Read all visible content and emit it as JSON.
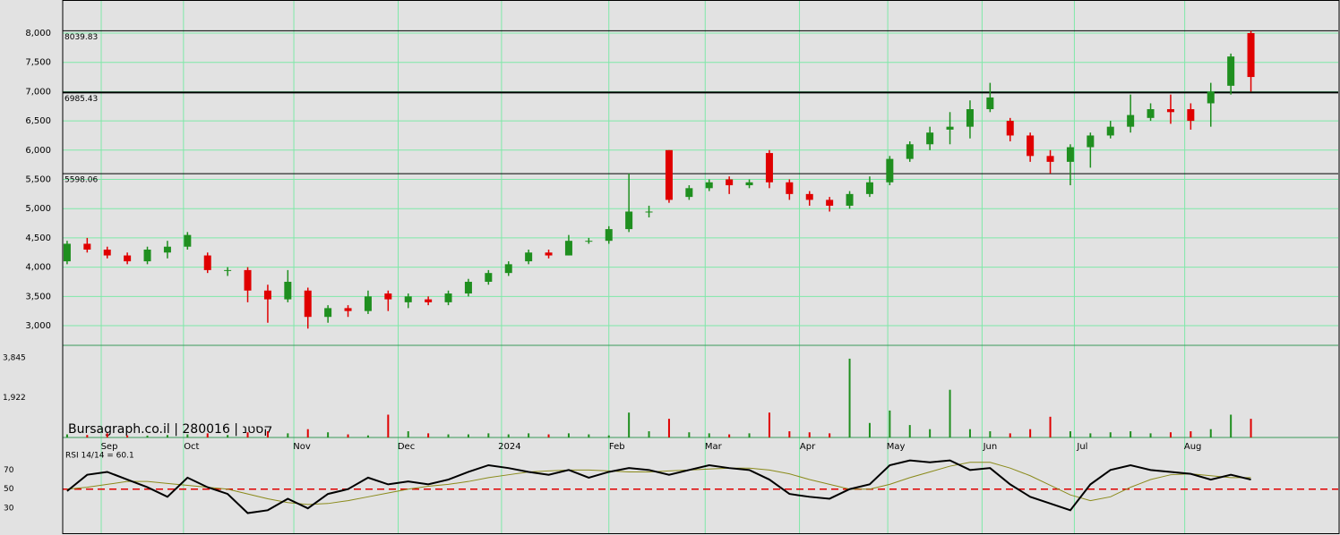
{
  "chart_data": [
    {
      "type": "candlestick",
      "watermark": "Bursagraph.co.il | 280016 | קסטנ",
      "ohlc": [
        [
          4100,
          4450,
          4050,
          4400
        ],
        [
          4400,
          4500,
          4250,
          4300
        ],
        [
          4300,
          4350,
          4150,
          4200
        ],
        [
          4200,
          4250,
          4050,
          4100
        ],
        [
          4100,
          4350,
          4050,
          4300
        ],
        [
          4250,
          4450,
          4150,
          4350
        ],
        [
          4350,
          4600,
          4300,
          4550
        ],
        [
          4200,
          4250,
          3900,
          3950
        ],
        [
          3950,
          4000,
          3850,
          3950
        ],
        [
          3950,
          4000,
          3400,
          3600
        ],
        [
          3600,
          3700,
          3050,
          3450
        ],
        [
          3450,
          3950,
          3400,
          3750
        ],
        [
          3600,
          3650,
          2950,
          3150
        ],
        [
          3150,
          3350,
          3050,
          3300
        ],
        [
          3300,
          3350,
          3150,
          3250
        ],
        [
          3250,
          3600,
          3200,
          3500
        ],
        [
          3550,
          3600,
          3250,
          3450
        ],
        [
          3400,
          3550,
          3300,
          3500
        ],
        [
          3450,
          3500,
          3350,
          3400
        ],
        [
          3400,
          3600,
          3350,
          3550
        ],
        [
          3550,
          3800,
          3500,
          3750
        ],
        [
          3750,
          3950,
          3700,
          3900
        ],
        [
          3900,
          4100,
          3850,
          4050
        ],
        [
          4100,
          4300,
          4050,
          4250
        ],
        [
          4250,
          4300,
          4150,
          4200
        ],
        [
          4200,
          4550,
          4200,
          4450
        ],
        [
          4450,
          4500,
          4400,
          4450
        ],
        [
          4450,
          4700,
          4400,
          4650
        ],
        [
          4650,
          5600,
          4600,
          4950
        ],
        [
          4950,
          5050,
          4850,
          4950
        ],
        [
          6000,
          6000,
          5100,
          5150
        ],
        [
          5200,
          5400,
          5150,
          5350
        ],
        [
          5350,
          5500,
          5300,
          5450
        ],
        [
          5500,
          5550,
          5250,
          5400
        ],
        [
          5400,
          5500,
          5350,
          5450
        ],
        [
          5950,
          6000,
          5350,
          5450
        ],
        [
          5450,
          5500,
          5150,
          5250
        ],
        [
          5250,
          5300,
          5050,
          5150
        ],
        [
          5150,
          5200,
          4950,
          5050
        ],
        [
          5050,
          5300,
          5000,
          5250
        ],
        [
          5250,
          5550,
          5200,
          5450
        ],
        [
          5450,
          5900,
          5400,
          5850
        ],
        [
          5850,
          6150,
          5800,
          6100
        ],
        [
          6100,
          6400,
          6000,
          6300
        ],
        [
          6350,
          6650,
          6100,
          6400
        ],
        [
          6400,
          6850,
          6200,
          6700
        ],
        [
          6700,
          7150,
          6650,
          6900
        ],
        [
          6500,
          6550,
          6150,
          6250
        ],
        [
          6250,
          6300,
          5800,
          5900
        ],
        [
          5900,
          6000,
          5600,
          5800
        ],
        [
          5800,
          6100,
          5400,
          6050
        ],
        [
          6050,
          6300,
          5700,
          6250
        ],
        [
          6250,
          6500,
          6200,
          6400
        ],
        [
          6400,
          6950,
          6300,
          6600
        ],
        [
          6550,
          6800,
          6500,
          6700
        ],
        [
          6700,
          6950,
          6450,
          6650
        ],
        [
          6700,
          6800,
          6350,
          6500
        ],
        [
          6800,
          7150,
          6400,
          7000
        ],
        [
          7100,
          7650,
          6950,
          7600
        ],
        [
          8000,
          8040,
          7000,
          7250
        ]
      ],
      "up_color": "#1f8f1f",
      "down_color": "#e00000",
      "ylim": [
        2664,
        8535
      ],
      "yticks": [
        {
          "value": 3000,
          "label": "3,000"
        },
        {
          "value": 3500,
          "label": "3,500"
        },
        {
          "value": 4000,
          "label": "4,000"
        },
        {
          "value": 4500,
          "label": "4,500"
        },
        {
          "value": 5000,
          "label": "5,000"
        },
        {
          "value": 5500,
          "label": "5,500"
        },
        {
          "value": 6000,
          "label": "6,000"
        },
        {
          "value": 6500,
          "label": "6,500"
        },
        {
          "value": 7000,
          "label": "7,000"
        },
        {
          "value": 7500,
          "label": "7,500"
        },
        {
          "value": 8000,
          "label": "8,000"
        }
      ],
      "levels": [
        8039.83,
        6985.43,
        5598.06
      ],
      "xlim": [
        -0.22,
        63.35
      ],
      "xticks": [
        {
          "value": 1.7,
          "label": "Sep"
        },
        {
          "value": 5.8,
          "label": "Oct"
        },
        {
          "value": 11.3,
          "label": "Nov"
        },
        {
          "value": 16.5,
          "label": "Dec"
        },
        {
          "value": 21.65,
          "label": "2024"
        },
        {
          "value": 27.0,
          "label": "Feb"
        },
        {
          "value": 31.8,
          "label": "Mar"
        },
        {
          "value": 36.5,
          "label": "Apr"
        },
        {
          "value": 40.9,
          "label": "May"
        },
        {
          "value": 45.6,
          "label": "Jun"
        },
        {
          "value": 50.2,
          "label": "Jul"
        },
        {
          "value": 55.7,
          "label": "Aug"
        }
      ],
      "grid": true
    },
    {
      "type": "volume",
      "values": [
        150,
        120,
        200,
        100,
        90,
        120,
        150,
        200,
        120,
        250,
        300,
        200,
        400,
        250,
        150,
        100,
        1100,
        300,
        200,
        150,
        150,
        200,
        150,
        200,
        150,
        200,
        150,
        100,
        1200,
        300,
        900,
        250,
        200,
        150,
        200,
        1200,
        300,
        250,
        200,
        3800,
        700,
        1300,
        600,
        400,
        2300,
        400,
        300,
        200,
        400,
        1000,
        300,
        200,
        250,
        300,
        200,
        250,
        300,
        400,
        1100,
        900
      ],
      "ylim": [
        0,
        4400
      ],
      "yticks": [
        {
          "value": 1922,
          "label": "1,922"
        },
        {
          "value": 3845,
          "label": "3,845"
        }
      ]
    },
    {
      "type": "rsi",
      "label": "RSI 14/14 = 60.1",
      "series": [
        {
          "color": "#000000",
          "values": [
            48,
            65,
            68,
            60,
            52,
            42,
            62,
            52,
            45,
            25,
            28,
            40,
            30,
            45,
            50,
            62,
            55,
            58,
            55,
            60,
            68,
            75,
            72,
            68,
            65,
            70,
            62,
            68,
            72,
            70,
            65,
            70,
            75,
            72,
            70,
            60,
            45,
            42,
            40,
            50,
            55,
            75,
            80,
            78,
            80,
            70,
            72,
            55,
            42,
            35,
            28,
            55,
            70,
            75,
            70,
            68,
            66,
            60,
            65,
            60
          ]
        },
        {
          "color": "#8a8a1a",
          "values": [
            50,
            52,
            55,
            58,
            58,
            56,
            54,
            52,
            50,
            45,
            40,
            36,
            34,
            35,
            38,
            42,
            46,
            50,
            53,
            55,
            58,
            62,
            65,
            68,
            69,
            70,
            70,
            69,
            68,
            68,
            69,
            70,
            71,
            72,
            72,
            70,
            66,
            60,
            55,
            50,
            50,
            55,
            62,
            68,
            74,
            78,
            78,
            72,
            64,
            54,
            44,
            38,
            42,
            52,
            60,
            65,
            66,
            64,
            62,
            62
          ]
        }
      ],
      "reference": 50,
      "reference_color": "#e00000",
      "ylim": [
        4,
        103
      ],
      "yticks": [
        30,
        50,
        70
      ]
    }
  ]
}
